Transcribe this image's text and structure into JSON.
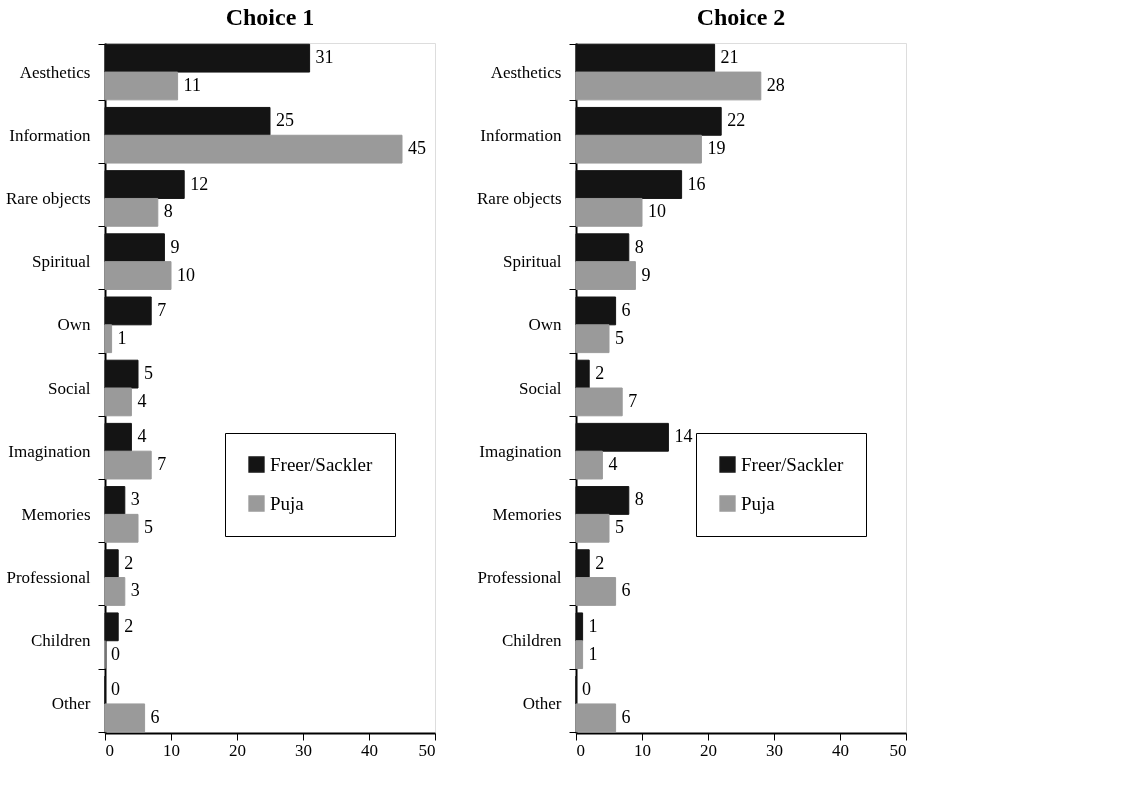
{
  "chart_data": [
    {
      "type": "bar",
      "orientation": "horizontal",
      "title": "Choice 1",
      "categories": [
        "Aesthetics",
        "Information",
        "Rare objects",
        "Spiritual",
        "Own",
        "Social",
        "Imagination",
        "Memories",
        "Professional",
        "Children",
        "Other"
      ],
      "series": [
        {
          "name": "Freer/Sackler",
          "color": "#141414",
          "values": [
            31,
            25,
            12,
            9,
            7,
            5,
            4,
            3,
            2,
            2,
            0
          ]
        },
        {
          "name": "Puja",
          "color": "#9a9a9a",
          "values": [
            11,
            45,
            8,
            10,
            1,
            4,
            7,
            5,
            3,
            0,
            6
          ]
        }
      ],
      "xlim": [
        0,
        50
      ],
      "xticks": [
        0,
        10,
        20,
        30,
        40,
        50
      ],
      "data_labels": true,
      "legend": "bottom right"
    },
    {
      "type": "bar",
      "orientation": "horizontal",
      "title": "Choice 2",
      "categories": [
        "Aesthetics",
        "Information",
        "Rare objects",
        "Spiritual",
        "Own",
        "Social",
        "Imagination",
        "Memories",
        "Professional",
        "Children",
        "Other"
      ],
      "series": [
        {
          "name": "Freer/Sackler",
          "color": "#141414",
          "values": [
            21,
            22,
            16,
            8,
            6,
            2,
            14,
            8,
            2,
            1,
            0
          ]
        },
        {
          "name": "Puja",
          "color": "#9a9a9a",
          "values": [
            28,
            19,
            10,
            9,
            5,
            7,
            4,
            5,
            6,
            1,
            6
          ]
        }
      ],
      "xlim": [
        0,
        50
      ],
      "xticks": [
        0,
        10,
        20,
        30,
        40,
        50
      ],
      "data_labels": true,
      "legend": "bottom right"
    }
  ]
}
